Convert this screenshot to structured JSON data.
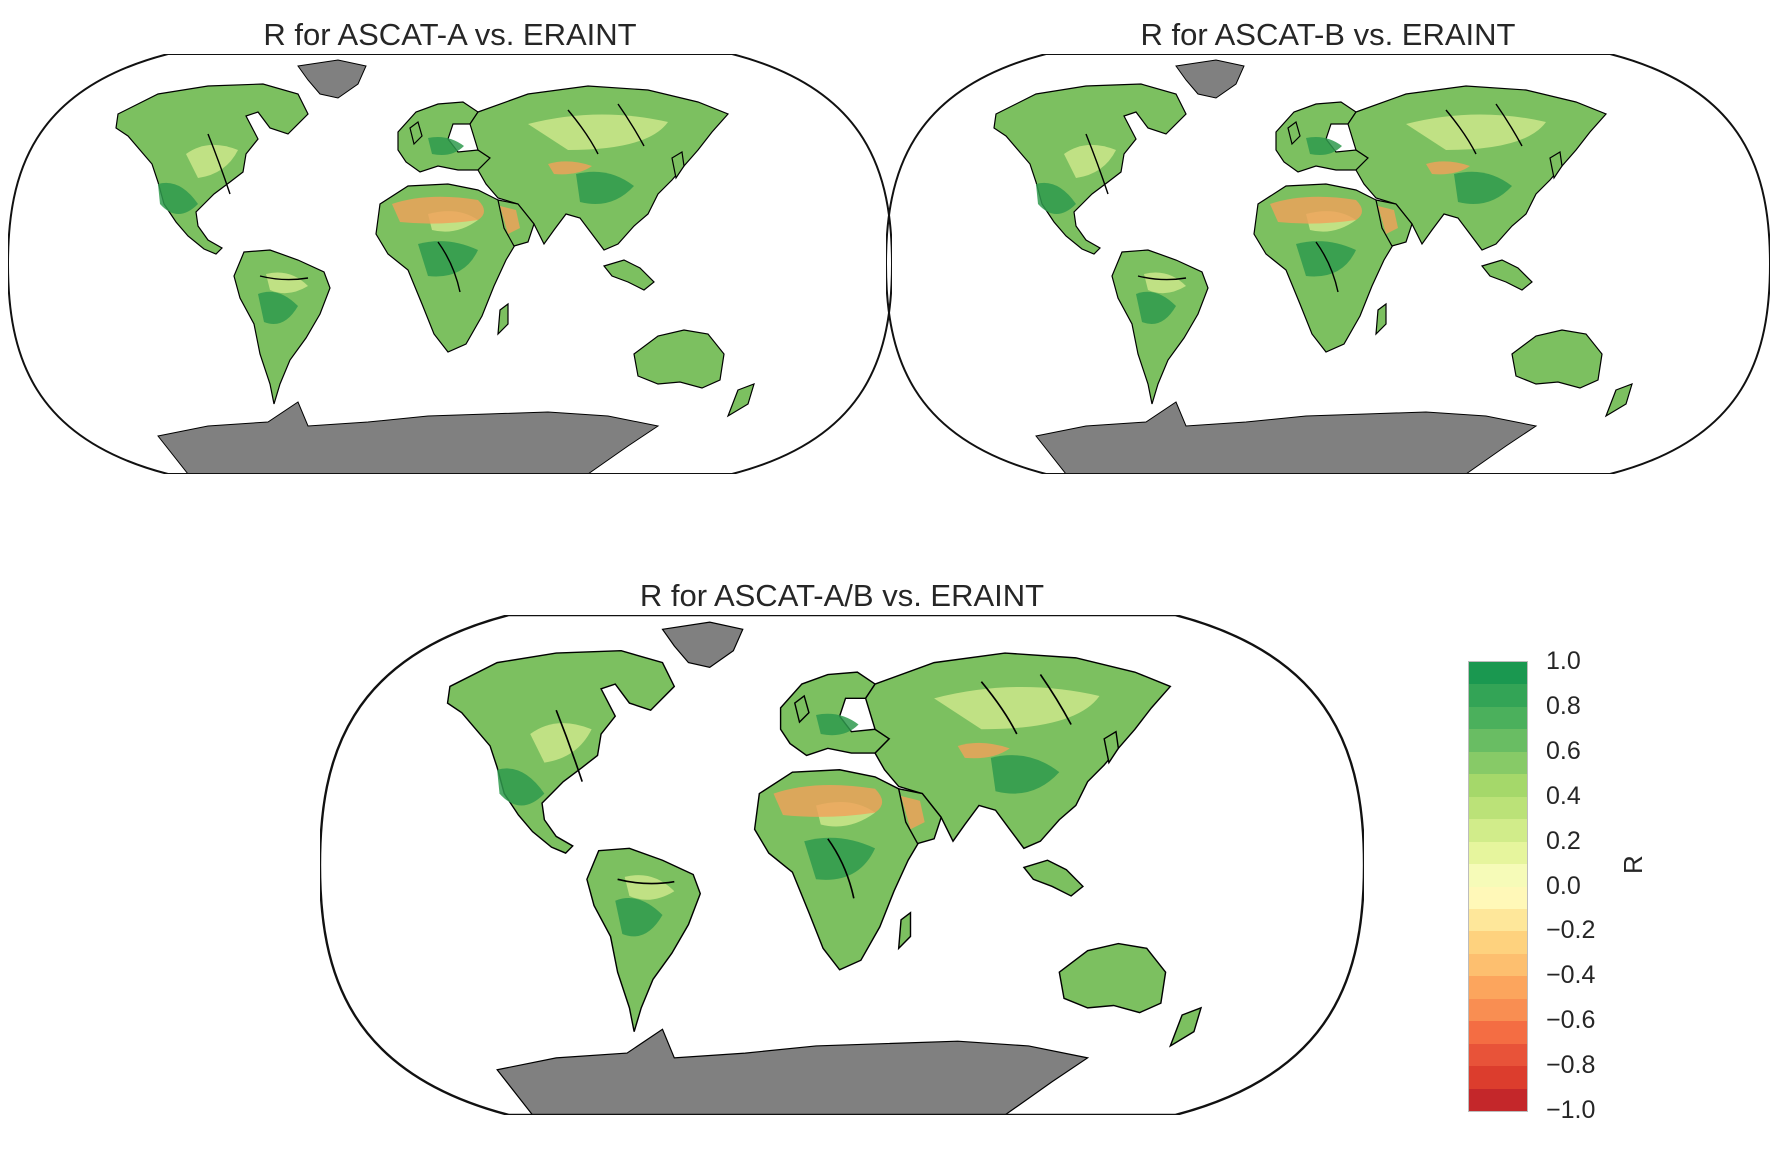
{
  "panels": [
    {
      "id": "a",
      "title": "R for ASCAT-A vs. ERAINT"
    },
    {
      "id": "b",
      "title": "R for ASCAT-B vs. ERAINT"
    },
    {
      "id": "ab",
      "title": "R for ASCAT-A/B vs. ERAINT"
    }
  ],
  "map": {
    "projection": "Robinson",
    "land_fill_main": "#7cc060",
    "land_fill_dark": "#2f9a4e",
    "land_fill_light": "#d7ec90",
    "desert_fill": "#f3a05a",
    "no_data_fill": "#808080",
    "coastline_color": "#000000"
  },
  "colorbar": {
    "label": "R",
    "ticks": [
      "1.0",
      "0.8",
      "0.6",
      "0.4",
      "0.2",
      "0.0",
      "−0.2",
      "−0.4",
      "−0.6",
      "−0.8",
      "−1.0"
    ],
    "colors_top_to_bottom": [
      "#1a9850",
      "#33a456",
      "#4bb05c",
      "#69bd63",
      "#87ca67",
      "#a5d86a",
      "#bbe278",
      "#d1ec8a",
      "#e6f59d",
      "#f6fbb8",
      "#fff8b8",
      "#fee79a",
      "#fed27e",
      "#fdbf6f",
      "#fca55d",
      "#f98e52",
      "#f46d43",
      "#e85339",
      "#dc3d2d",
      "#c4272a"
    ]
  }
}
